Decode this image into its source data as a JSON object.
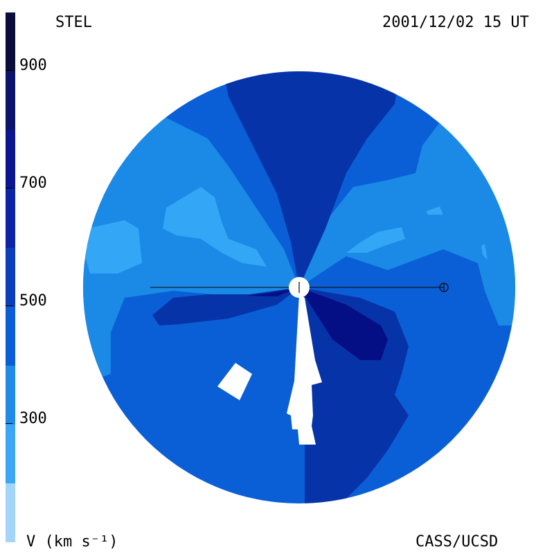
{
  "header": {
    "instrument": "STEL",
    "timestamp": "2001/12/02 15 UT"
  },
  "footer": {
    "unit_label": "V (km s⁻¹)",
    "credit": "CASS/UCSD"
  },
  "colorbar": {
    "min": 200,
    "max": 1000,
    "ticks": [
      "900",
      "700",
      "500",
      "300"
    ],
    "segments": [
      "#0b0d3a",
      "#0c1369",
      "#0a1690",
      "#0b25a6",
      "#0a3ebd",
      "#0a5fd6",
      "#1f8ae8",
      "#3aa6f5",
      "#a3d5fa"
    ]
  },
  "map": {
    "colors": {
      "v300_400": "#1a8ae6",
      "v250_300": "#33a6f5",
      "v400_500": "#0a5fd6",
      "v500_600": "#0733a8",
      "v600_700": "#050f85",
      "data_gap": "#ffffff"
    }
  }
}
